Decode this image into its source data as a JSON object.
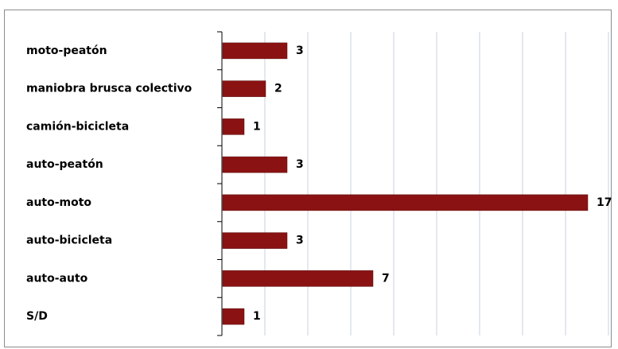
{
  "chart_data": {
    "type": "bar",
    "orientation": "horizontal",
    "categories": [
      "moto-peatón",
      "maniobra brusca colectivo",
      "camión-bicicleta",
      "auto-peatón",
      "auto-moto",
      "auto-bicicleta",
      "auto-auto",
      "S/D"
    ],
    "values": [
      3,
      2,
      1,
      3,
      17,
      3,
      7,
      1
    ],
    "title": "",
    "xlabel": "",
    "ylabel": "",
    "xlim": [
      0,
      18
    ],
    "x_grid_step": 2,
    "grid": "vertical",
    "legend": "none",
    "data_labels": true,
    "bar_color": "#8b1212"
  }
}
